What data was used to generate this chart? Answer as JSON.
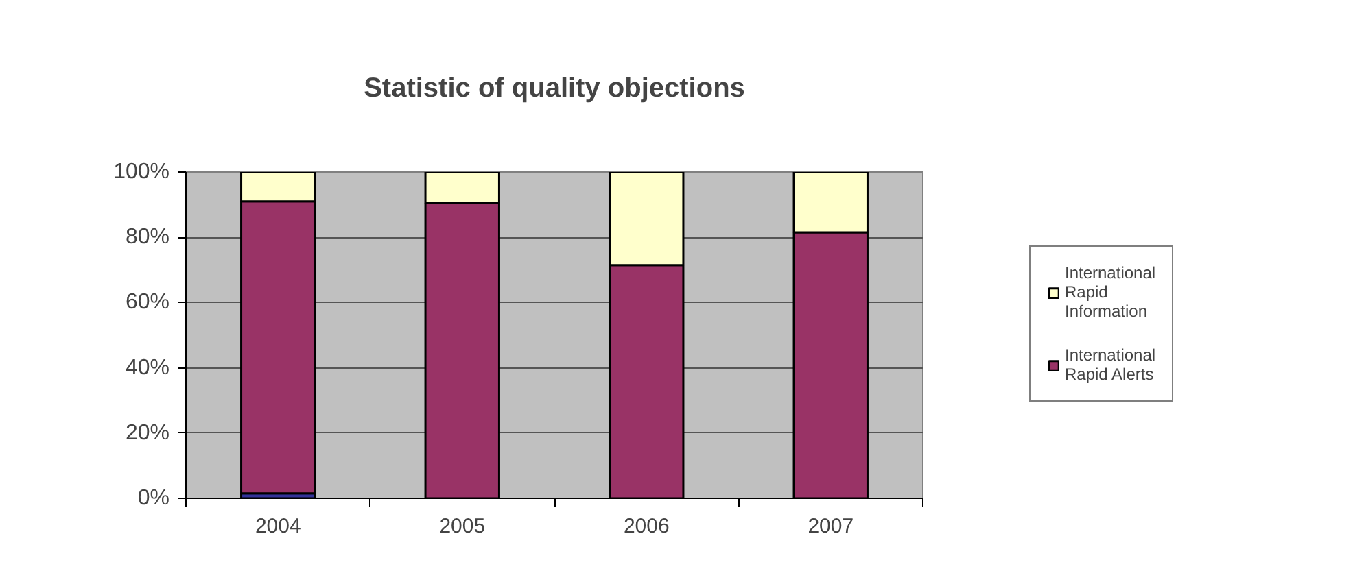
{
  "chart_data": {
    "type": "bar",
    "title": "Statistic of quality objections",
    "categories": [
      "2004",
      "2005",
      "2006",
      "2007"
    ],
    "stacked": true,
    "series": [
      {
        "color": "#333399",
        "values": [
          1.5,
          null,
          null,
          null
        ]
      },
      {
        "name": "International Rapid Alerts",
        "color": "#993366",
        "values": [
          89.5,
          90.5,
          71.5,
          81.5
        ]
      },
      {
        "name": "International Rapid Information",
        "color": "#ffffcc",
        "values": [
          9,
          9.5,
          28.5,
          18.5
        ]
      }
    ],
    "ylim": [
      0,
      100
    ],
    "yticks": [
      {
        "value": 0,
        "label": "0%"
      },
      {
        "value": 20,
        "label": "20%"
      },
      {
        "value": 40,
        "label": "40%"
      },
      {
        "value": 60,
        "label": "60%"
      },
      {
        "value": 80,
        "label": "80%"
      },
      {
        "value": 100,
        "label": "100%"
      }
    ],
    "grid": "y",
    "legend": "right"
  }
}
